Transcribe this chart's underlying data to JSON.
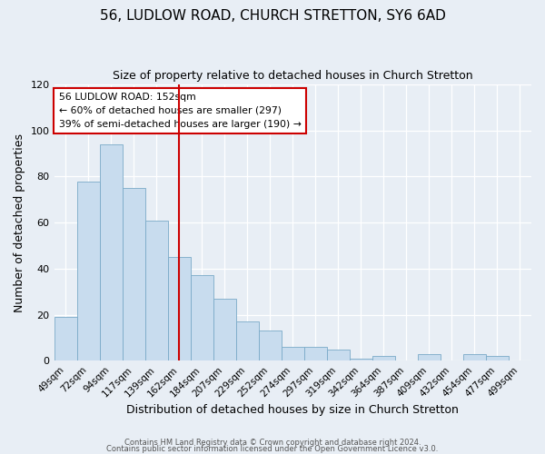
{
  "title": "56, LUDLOW ROAD, CHURCH STRETTON, SY6 6AD",
  "subtitle": "Size of property relative to detached houses in Church Stretton",
  "xlabel": "Distribution of detached houses by size in Church Stretton",
  "ylabel": "Number of detached properties",
  "bar_color": "#c8dcee",
  "bar_edge_color": "#7aaac8",
  "background_color": "#e8eef5",
  "categories": [
    "49sqm",
    "72sqm",
    "94sqm",
    "117sqm",
    "139sqm",
    "162sqm",
    "184sqm",
    "207sqm",
    "229sqm",
    "252sqm",
    "274sqm",
    "297sqm",
    "319sqm",
    "342sqm",
    "364sqm",
    "387sqm",
    "409sqm",
    "432sqm",
    "454sqm",
    "477sqm",
    "499sqm"
  ],
  "values": [
    19,
    78,
    94,
    75,
    61,
    45,
    37,
    27,
    17,
    13,
    6,
    6,
    5,
    1,
    2,
    0,
    3,
    0,
    3,
    2,
    0
  ],
  "vline_index": 5,
  "vline_color": "#cc0000",
  "annotation_line1": "56 LUDLOW ROAD: 152sqm",
  "annotation_line2": "← 60% of detached houses are smaller (297)",
  "annotation_line3": "39% of semi-detached houses are larger (190) →",
  "annotation_box_color": "#ffffff",
  "annotation_box_edge_color": "#cc0000",
  "ylim": [
    0,
    120
  ],
  "yticks": [
    0,
    20,
    40,
    60,
    80,
    100,
    120
  ],
  "footer1": "Contains HM Land Registry data © Crown copyright and database right 2024.",
  "footer2": "Contains public sector information licensed under the Open Government Licence v3.0."
}
